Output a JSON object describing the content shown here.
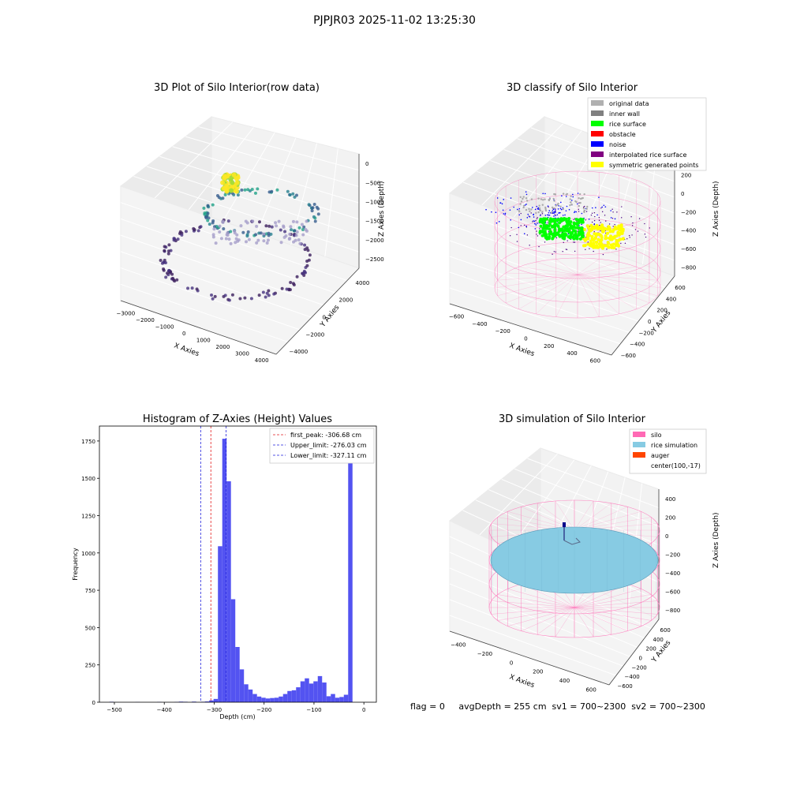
{
  "figure_title": "PJPJR03 2025-11-02 13:25:30",
  "status_line": "flag = 0     avgDepth = 255 cm  sv1 = 700~2300  sv2 = 700~2300",
  "colors": {
    "hist_bar": "#4a4af0",
    "first_peak": "#e41a1c",
    "limit": "#1f1fdd",
    "silo_wire": "#ff69b4",
    "rice": "#87cbe3",
    "auger": "#ff4500",
    "pane_grey": "#ebebeb"
  },
  "chart_data": [
    {
      "type": "scatter",
      "panel": "raw",
      "title": "3D Plot of Silo Interior(row data)",
      "xlabel": "X Axies",
      "ylabel": "Y Axies",
      "zlabel": "Z Axies (Depth)",
      "x_ticks": [
        "−3000",
        "−2000",
        "−1000",
        "0",
        "1000",
        "2000",
        "3000",
        "4000"
      ],
      "y_ticks": [
        "−4000",
        "−2000",
        "0",
        "2000",
        "4000"
      ],
      "z_ticks": [
        "0",
        "−500",
        "−1000",
        "−1500",
        "−2000",
        "−2500"
      ],
      "xlim": [
        -3000,
        4000
      ],
      "ylim": [
        -4000,
        4000
      ],
      "zlim": [
        -2500,
        0
      ],
      "colormap": "viridis"
    },
    {
      "type": "scatter",
      "panel": "classify",
      "title": "3D classify of Silo Interior",
      "xlabel": "X Axies",
      "ylabel": "Y Axies",
      "zlabel": "Z Axies (Depth)",
      "x_ticks": [
        "−600",
        "−400",
        "−200",
        "0",
        "200",
        "400",
        "600"
      ],
      "y_ticks": [
        "−600",
        "−400",
        "−200",
        "0",
        "200",
        "400",
        "600"
      ],
      "z_ticks": [
        "200",
        "0",
        "−200",
        "−400",
        "−600",
        "−800"
      ],
      "legend_location": "upper right",
      "legend": [
        {
          "label": "original data",
          "color": "#b0b0b0"
        },
        {
          "label": "inner wall",
          "color": "#808080"
        },
        {
          "label": "rice surface",
          "color": "#00ff00"
        },
        {
          "label": "obstacle",
          "color": "#ff0000"
        },
        {
          "label": "noise",
          "color": "#0000ff"
        },
        {
          "label": "interpolated rice surface",
          "color": "#800080"
        },
        {
          "label": "symmetric generated points",
          "color": "#ffff00"
        }
      ]
    },
    {
      "type": "bar",
      "panel": "histogram",
      "title": "Histogram of Z-Axies (Height) Values",
      "xlabel": "Depth (cm)",
      "ylabel": "Frequency",
      "xlim": [
        -530,
        25
      ],
      "ylim": [
        0,
        1850
      ],
      "x_ticks": [
        -500,
        -400,
        -300,
        -200,
        -100,
        0
      ],
      "y_ticks": [
        0,
        250,
        500,
        750,
        1000,
        1250,
        1500,
        1750
      ],
      "bin_edges_start": -510,
      "bin_width": 8.7,
      "values": [
        3,
        0,
        0,
        0,
        0,
        0,
        1,
        0,
        0,
        0,
        0,
        2,
        0,
        0,
        0,
        2,
        4,
        3,
        0,
        4,
        0,
        3,
        5,
        12,
        22,
        1045,
        1765,
        1480,
        690,
        370,
        220,
        120,
        85,
        55,
        38,
        30,
        25,
        28,
        30,
        38,
        55,
        75,
        80,
        100,
        140,
        160,
        125,
        140,
        175,
        132,
        40,
        55,
        30,
        35,
        50,
        1755
      ],
      "lines": [
        {
          "label": "first_peak: -306.68 cm",
          "x": -306.68,
          "color": "#e41a1c"
        },
        {
          "label": "Upper_limit: -276.03 cm",
          "x": -276.03,
          "color": "#1f1fdd"
        },
        {
          "label": "Lower_limit: -327.11 cm",
          "x": -327.11,
          "color": "#1f1fdd"
        }
      ],
      "legend_location": "upper right"
    },
    {
      "type": "surface",
      "panel": "simulation",
      "title": "3D simulation of Silo Interior",
      "xlabel": "X Axies",
      "ylabel": "Y Axies",
      "zlabel": "Z Axies (Depth)",
      "x_ticks": [
        "−400",
        "−200",
        "0",
        "200",
        "400",
        "600"
      ],
      "y_ticks": [
        "−600",
        "−400",
        "−200",
        "0",
        "200",
        "400",
        "600"
      ],
      "z_ticks": [
        "400",
        "200",
        "0",
        "−200",
        "−400",
        "−600",
        "−800"
      ],
      "legend": [
        {
          "label": "silo",
          "color": "#ff69b4"
        },
        {
          "label": "rice simulation",
          "color": "#87cbe3"
        },
        {
          "label": "auger",
          "color": "#ff4500"
        },
        {
          "label": "center(100,-17)",
          "color": ""
        }
      ],
      "center": [
        100,
        -17
      ]
    }
  ]
}
